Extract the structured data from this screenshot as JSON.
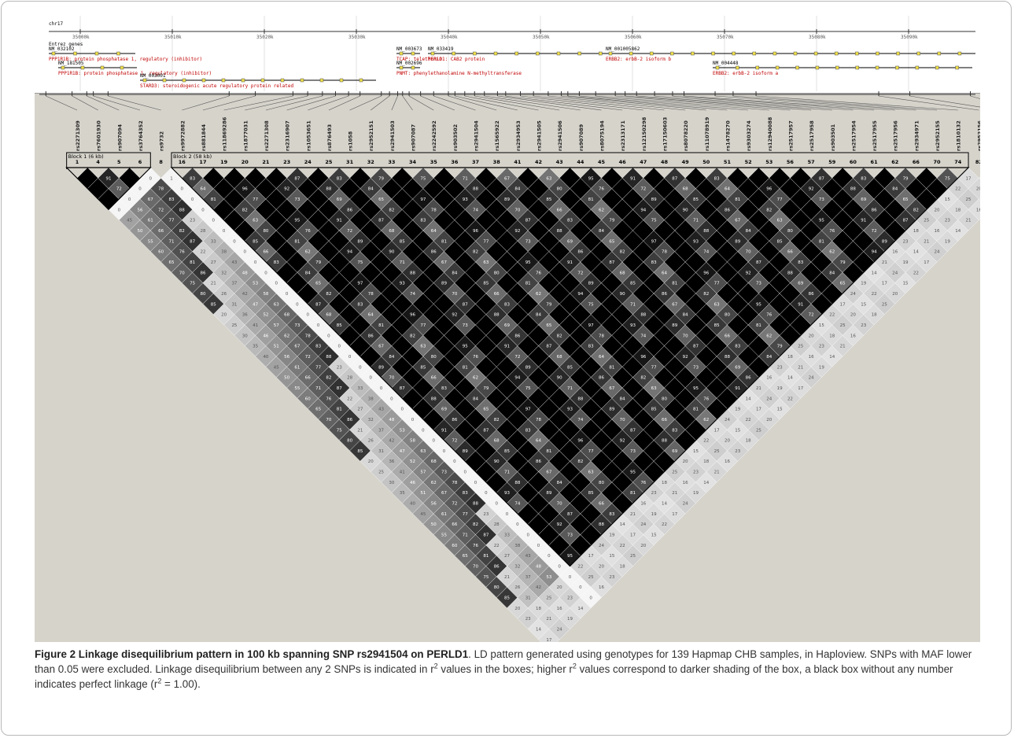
{
  "figure": {
    "chromosome": "chr17",
    "track_label": "Entrez genes",
    "ruler_ticks": [
      "35000k",
      "35010k",
      "35020k",
      "35030k",
      "35040k",
      "35050k",
      "35060k",
      "35070k",
      "35080k",
      "35090k"
    ],
    "genes": [
      {
        "accession": "NM_032102",
        "desc": "PPP1R1B: protein phosphatase 1, regulatory (inhibitor)"
      },
      {
        "accession": "NM_181505",
        "desc": "PPP1R1B: protein phosphatase 1, regulatory (inhibitor)"
      },
      {
        "accession": "NM_003001",
        "desc": "STARD3: steroidogenic acute regulatory protein related"
      },
      {
        "accession": "NM_003673",
        "desc": "TCAP: telethonin"
      },
      {
        "accession": "NM_033419",
        "desc": "PERLD1: CAB2 protein"
      },
      {
        "accession": "NM_002696",
        "desc": "PNMT: phenylethanolamine N-methyltransferase"
      },
      {
        "accession": "NM_001005862",
        "desc": "ERBB2: erbB-2 isoform b"
      },
      {
        "accession": "NM_004448",
        "desc": "ERBB2: erbB-2 isoform a"
      }
    ],
    "snps": [
      {
        "name": "rs2271309",
        "index": "1"
      },
      {
        "name": "rs7601930",
        "index": "4"
      },
      {
        "name": "rs907094",
        "index": "5"
      },
      {
        "name": "rs3764352",
        "index": "6"
      },
      {
        "name": "rs9732",
        "index": "8"
      },
      {
        "name": "rs9972882",
        "index": "16"
      },
      {
        "name": "rs881844",
        "index": "17"
      },
      {
        "name": "rs11869286",
        "index": "19"
      },
      {
        "name": "rs1877031",
        "index": "20"
      },
      {
        "name": "rs2271308",
        "index": "21"
      },
      {
        "name": "rs2316907",
        "index": "23"
      },
      {
        "name": "rs1053651",
        "index": "24"
      },
      {
        "name": "rs876493",
        "index": "25"
      },
      {
        "name": "rs1058",
        "index": "31"
      },
      {
        "name": "rs2952151",
        "index": "32"
      },
      {
        "name": "rs2941503",
        "index": "33"
      },
      {
        "name": "rs907087",
        "index": "34"
      },
      {
        "name": "rs2242592",
        "index": "35"
      },
      {
        "name": "rs903502",
        "index": "36"
      },
      {
        "name": "rs2941504",
        "index": "37"
      },
      {
        "name": "rs1565922",
        "index": "38"
      },
      {
        "name": "rs2934953",
        "index": "41"
      },
      {
        "name": "rs2941505",
        "index": "42"
      },
      {
        "name": "rs2941506",
        "index": "43"
      },
      {
        "name": "rs907089",
        "index": "44"
      },
      {
        "name": "rs8075194",
        "index": "45"
      },
      {
        "name": "rs2313171",
        "index": "46"
      },
      {
        "name": "rs12150298",
        "index": "47"
      },
      {
        "name": "rs17150603",
        "index": "48"
      },
      {
        "name": "rs8078220",
        "index": "49"
      },
      {
        "name": "rs11078919",
        "index": "50"
      },
      {
        "name": "rs1478270",
        "index": "51"
      },
      {
        "name": "rs9303274",
        "index": "52"
      },
      {
        "name": "rs12940088",
        "index": "53"
      },
      {
        "name": "rs2517957",
        "index": "56"
      },
      {
        "name": "rs2517958",
        "index": "57"
      },
      {
        "name": "rs903501",
        "index": "59"
      },
      {
        "name": "rs2517954",
        "index": "60"
      },
      {
        "name": "rs2517955",
        "index": "61"
      },
      {
        "name": "rs2517956",
        "index": "62"
      },
      {
        "name": "rs2934971",
        "index": "66"
      },
      {
        "name": "rs2952155",
        "index": "70"
      },
      {
        "name": "rs1810132",
        "index": "74"
      },
      {
        "name": "rs2952156",
        "index": "82"
      },
      {
        "name": "rs1136201",
        "index": "83"
      },
      {
        "name": "rs1058808",
        "index": "85"
      }
    ],
    "blocks": [
      {
        "label": "Block 1 (6 kb)",
        "start": 0,
        "end": 3
      },
      {
        "label": "Block 2 (58 kb)",
        "start": 5,
        "end": 42
      }
    ],
    "colors": {
      "panel_bg": "#d6d3cb",
      "perfect_ld": "#000000",
      "no_ld": "#ffffff"
    }
  },
  "caption": {
    "title": "Figure 2 Linkage disequilibrium pattern in 100 kb spanning SNP rs2941504 on PERLD1",
    "text_1": ". LD pattern generated using genotypes for 139 Hapmap CHB samples, in Haploview. SNPs with MAF lower than 0.05 were excluded. Linkage disequilibrium between any 2 SNPs is indicated in r",
    "sup_1": "2",
    "text_2": " values in the boxes; higher r",
    "sup_2": "2",
    "text_3": " values correspond to darker shading of the box, a black box without any number indicates perfect linkage (r",
    "sup_3": "2",
    "text_4": " = 1.00)."
  }
}
